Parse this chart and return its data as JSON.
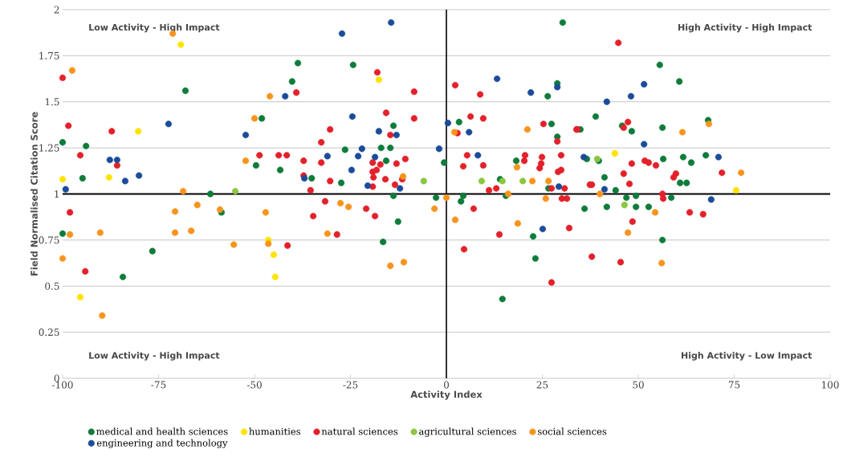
{
  "chart_data": {
    "type": "scatter",
    "xlabel": "Activity Index",
    "ylabel": "Field Normalised Citation Score",
    "xlim": [
      -100,
      100
    ],
    "ylim": [
      0,
      2
    ],
    "xticks": [
      -100,
      -75,
      -50,
      -25,
      0,
      25,
      50,
      75,
      100
    ],
    "yticks": [
      0,
      0.25,
      0.5,
      0.75,
      1,
      1.25,
      1.5,
      1.75,
      2
    ],
    "grid": "y",
    "legend": "bottom",
    "ref_lines": [
      {
        "axis": "x",
        "value": 0,
        "color": "#000000"
      },
      {
        "axis": "y",
        "value": 1,
        "color": "#000000"
      }
    ],
    "annotations": [
      "Low Activity - High Impact",
      "High Activity - High Impact",
      "Low Activity - High Impact",
      "High Activity - Low Impact"
    ],
    "series": [
      {
        "name": "medical and health sciences",
        "color": "#0e7c3a",
        "x": [
          -100,
          -93.9,
          -94.8,
          -68,
          -48.1,
          -49.6,
          -43.3,
          -38.7,
          -40.2,
          -35.1,
          -61.5,
          -100,
          -76.6,
          -84.3,
          -58.6,
          -24.3,
          -26.4,
          -27.4,
          -17,
          -14.6,
          -13.8,
          -15.7,
          -13.8,
          -12.6,
          -16.5,
          -0.6,
          -2.7,
          3.3,
          4.4,
          3.8,
          14.0,
          15.5,
          18.2,
          22.6,
          23.2,
          14.6,
          26.4,
          27.4,
          28.9,
          28.9,
          26.6,
          30.3,
          34.9,
          36.6,
          38.9,
          39.7,
          41.2,
          45.8,
          48.3,
          44.1,
          46.9,
          49.4,
          36,
          41.8,
          49.4,
          52.7,
          55.6,
          56.3,
          56.5,
          58.6,
          56.3,
          60.7,
          61.7,
          63.8,
          60.9,
          62.6,
          67.6,
          68.2
        ],
        "values": [
          1.28,
          1.26,
          1.085,
          1.56,
          1.41,
          1.155,
          1.13,
          1.71,
          1.61,
          1.085,
          1.0,
          0.785,
          0.69,
          0.55,
          0.9,
          1.7,
          1.24,
          1.06,
          1.25,
          1.25,
          1.37,
          1.18,
          0.99,
          0.85,
          0.74,
          1.17,
          0.98,
          1.39,
          0.99,
          0.96,
          1.08,
          0.99,
          1.18,
          0.77,
          0.65,
          0.43,
          1.53,
          1.38,
          1.6,
          1.31,
          1.03,
          1.93,
          1.35,
          1.19,
          1.42,
          1.18,
          1.09,
          1.37,
          1.34,
          1.02,
          0.98,
          0.99,
          0.92,
          0.93,
          0.93,
          0.93,
          1.7,
          1.36,
          1.19,
          0.98,
          0.75,
          1.61,
          1.2,
          1.17,
          1.06,
          1.06,
          1.21,
          1.4
        ]
      },
      {
        "name": "humanities",
        "color": "#ffe300",
        "x": [
          -69.2,
          -80.3,
          -87.9,
          -100,
          -46.4,
          -45,
          -44.6,
          -95.4,
          -17.6,
          43.9,
          75.5
        ],
        "values": [
          1.81,
          1.34,
          1.09,
          1.08,
          0.75,
          0.67,
          0.55,
          0.44,
          1.62,
          1.22,
          1.02
        ]
      },
      {
        "name": "natural sciences",
        "color": "#e3212b",
        "x": [
          -100,
          -98.5,
          -95.4,
          -87.2,
          -85.8,
          -39.1,
          -48.7,
          -43.7,
          -41.6,
          -37.2,
          -37.2,
          -35.4,
          -32.6,
          -32.6,
          -98.1,
          -94.1,
          -41.4,
          -34.7,
          -18,
          -8.4,
          2.3,
          8.8,
          -15.7,
          -8.4,
          -30.3,
          -14.6,
          -19.2,
          -17.2,
          -13,
          -10.7,
          -19.2,
          -18.2,
          -19,
          -30.3,
          -15.9,
          -13.4,
          -11.5,
          -19.2,
          6.3,
          9.6,
          2.9,
          5.4,
          4.4,
          9.6,
          11.1,
          13.0,
          20.5,
          20.3,
          25.3,
          24.9,
          24.7,
          24.3,
          28.9,
          29.9,
          29.1,
          29.9,
          27.4,
          30.8,
          33.9,
          -31.6,
          -20.9,
          -18.6,
          -28.5,
          7.1,
          13.8,
          4.6,
          27.4,
          32.0,
          30.1,
          31.4,
          44.8,
          47.3,
          46.2,
          34.1,
          48.3,
          51.7,
          52.7,
          54.6,
          46.2,
          59.8,
          59.2,
          71.8,
          37.4,
          37.9,
          47.7,
          56.3,
          56.5,
          63.4,
          66.9,
          48.5,
          37.9,
          45.4
        ],
        "values": [
          1.63,
          1.37,
          1.21,
          1.34,
          1.155,
          1.55,
          1.21,
          1.21,
          1.21,
          1.18,
          1.1,
          1.02,
          1.28,
          1.17,
          0.9,
          0.58,
          0.72,
          0.88,
          1.66,
          1.555,
          1.59,
          1.54,
          1.44,
          1.41,
          1.35,
          1.32,
          1.17,
          1.16,
          1.165,
          1.19,
          1.12,
          1.13,
          1.09,
          1.07,
          1.08,
          1.05,
          1.08,
          1.04,
          1.42,
          1.41,
          1.33,
          1.21,
          1.15,
          1.155,
          1.02,
          1.03,
          1.21,
          1.18,
          1.38,
          1.2,
          1.165,
          1.14,
          1.285,
          1.21,
          1.12,
          1.13,
          1.03,
          1.03,
          1.35,
          0.96,
          0.92,
          0.88,
          0.78,
          0.92,
          0.78,
          0.7,
          0.52,
          0.815,
          0.975,
          0.975,
          1.82,
          1.39,
          1.36,
          1.35,
          1.165,
          1.18,
          1.17,
          1.155,
          1.11,
          1.11,
          1.09,
          1.115,
          1.05,
          1.05,
          1.055,
          1.0,
          0.975,
          0.9,
          0.89,
          0.85,
          0.66,
          0.63
        ]
      },
      {
        "name": "agricultural sciences",
        "color": "#8cc63e",
        "x": [
          -55,
          -5.9,
          9.2,
          14.6,
          19.9,
          39.3,
          46.4
        ],
        "values": [
          1.015,
          1.07,
          1.07,
          1.07,
          1.07,
          1.19,
          0.94
        ]
      },
      {
        "name": "social sciences",
        "color": "#f7941d",
        "x": [
          -97.5,
          -71.3,
          -46,
          -50,
          -52.3,
          -68.6,
          -98.1,
          -100,
          -90.2,
          -89.7,
          -70.7,
          -70.7,
          -66.5,
          -64.9,
          -59,
          -55.4,
          -47.1,
          -46.4,
          -27.6,
          -25.5,
          -3.1,
          0,
          -31,
          -14.6,
          -11.1,
          2.3,
          18.6,
          16.1,
          25.9,
          -11.3,
          2.1,
          21.1,
          18.4,
          22.4,
          26.6,
          61.5,
          68.4,
          76.8,
          40,
          54.4,
          47.3,
          56.1
        ],
        "values": [
          1.67,
          1.87,
          1.53,
          1.41,
          1.18,
          1.015,
          0.78,
          0.65,
          0.79,
          0.34,
          0.905,
          0.79,
          0.8,
          0.94,
          0.915,
          0.725,
          0.9,
          0.73,
          0.95,
          0.93,
          0.92,
          0.98,
          0.785,
          0.61,
          0.63,
          0.86,
          0.84,
          1.0,
          0.975,
          1.095,
          1.335,
          1.35,
          1.145,
          1.07,
          1.07,
          1.335,
          1.38,
          1.115,
          1.0,
          0.9,
          0.79,
          0.625
        ]
      },
      {
        "name": "engineering and technology",
        "color": "#1b4c9a",
        "x": [
          -99.2,
          -87.7,
          -85.8,
          -83.7,
          -80.1,
          -72.4,
          -52.3,
          -42,
          -37,
          -27.2,
          -14.4,
          -24.5,
          -17.6,
          -13,
          -22,
          -31,
          -23,
          -18.6,
          -24.7,
          -1.9,
          -20.5,
          -12.1,
          0.4,
          5.9,
          13.2,
          22,
          28.9,
          8.2,
          29.3,
          25.1,
          41.8,
          48.1,
          51.5,
          51.5,
          35.8,
          70.9,
          41.2,
          69
        ],
        "values": [
          1.025,
          1.185,
          1.185,
          1.07,
          1.1,
          1.38,
          1.32,
          1.53,
          1.085,
          1.87,
          1.93,
          1.42,
          1.34,
          1.32,
          1.245,
          1.205,
          1.205,
          1.2,
          1.13,
          1.245,
          1.045,
          1.03,
          1.385,
          1.335,
          1.625,
          1.55,
          1.58,
          1.21,
          1.04,
          0.81,
          1.5,
          1.53,
          1.595,
          1.27,
          1.2,
          1.2,
          1.025,
          0.97
        ]
      }
    ]
  }
}
